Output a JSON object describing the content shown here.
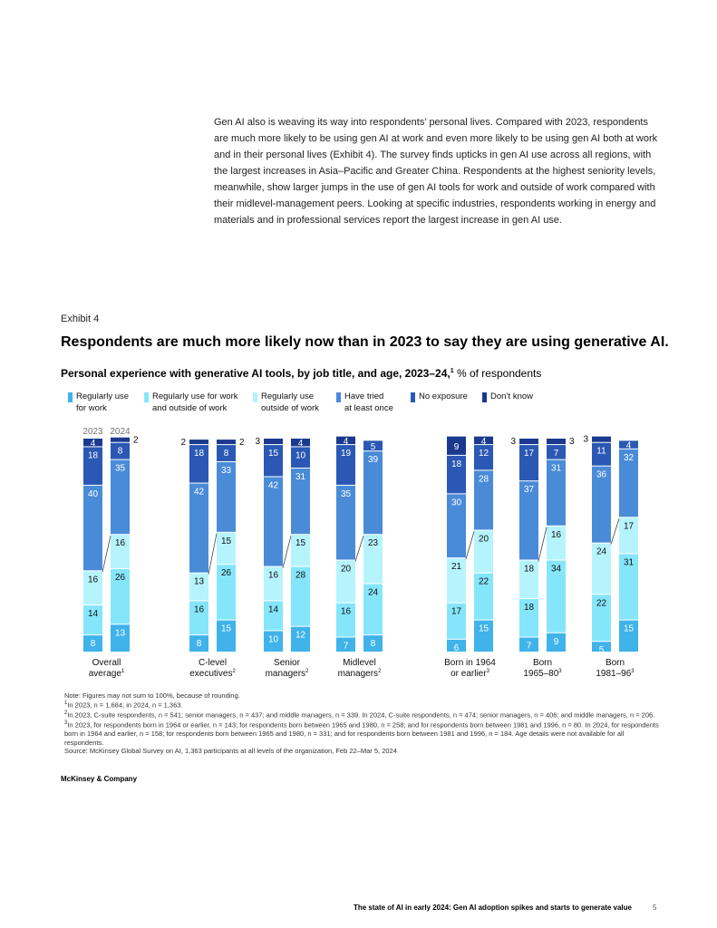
{
  "intro_text": "Gen AI also is weaving its way into respondents’ personal lives. Compared with 2023, respondents are much more likely to be using gen AI at work and even more likely to be using gen AI both at work and in their personal lives (Exhibit 4). The survey finds upticks in gen AI use across all regions, with the largest increases in Asia–Pacific and Greater China. Respondents at the highest seniority levels, meanwhile, show larger jumps in the use of gen AI tools for work and outside of work compared with their midlevel-management peers. Looking at specific industries, respondents working in energy and materials and in professional services report the largest increase in gen AI use.",
  "exhibit_label": "Exhibit 4",
  "exhibit_title": "Respondents are much more likely now than in 2023 to say they are using generative AI.",
  "subtitle_bold": "Personal experience with generative AI tools, by job title, and age, 2023–24,",
  "subtitle_sup": "1",
  "subtitle_rest": " % of respondents",
  "legend": [
    {
      "line1": "Regularly use",
      "line2": "for work",
      "color": "#3fb3ea"
    },
    {
      "line1": "Regularly use for work",
      "line2": "and outside of work",
      "color": "#85e6fb"
    },
    {
      "line1": "Regularly use",
      "line2": "outside of work",
      "color": "#b6f4fd"
    },
    {
      "line1": "Have tried",
      "line2": "at least once",
      "color": "#4a8bd8"
    },
    {
      "line1": "No exposure",
      "line2": "",
      "color": "#2a58b4"
    },
    {
      "line1": "Don’t know",
      "line2": "",
      "color": "#1b3a8f"
    }
  ],
  "chart_data": {
    "type": "bar",
    "stacked": true,
    "unit": "% of respondents",
    "year_labels": [
      "2023",
      "2024"
    ],
    "series_names": [
      "Regularly use for work",
      "Regularly use for work and outside of work",
      "Regularly use outside of work",
      "Have tried at least once",
      "No exposure",
      "Don’t know"
    ],
    "groups": [
      {
        "line1": "Overall",
        "line2": "average",
        "sup": "1",
        "y2023": [
          8,
          14,
          16,
          40,
          18,
          4
        ],
        "y2024": [
          13,
          26,
          16,
          35,
          8,
          2
        ]
      },
      {
        "line1": "C-level",
        "line2": "executives",
        "sup": "2",
        "y2023": [
          8,
          16,
          13,
          42,
          18,
          2
        ],
        "y2024": [
          15,
          26,
          15,
          33,
          8,
          2
        ]
      },
      {
        "line1": "Senior",
        "line2": "managers",
        "sup": "2",
        "y2023": [
          10,
          14,
          16,
          42,
          15,
          3
        ],
        "y2024": [
          12,
          28,
          15,
          31,
          10,
          4
        ]
      },
      {
        "line1": "Midlevel",
        "line2": "managers",
        "sup": "2",
        "y2023": [
          7,
          16,
          20,
          35,
          19,
          4
        ],
        "y2024": [
          8,
          24,
          23,
          39,
          5,
          0
        ]
      },
      {
        "line1": "Born in 1964",
        "line2": "or earlier",
        "sup": "3",
        "y2023": [
          6,
          17,
          21,
          30,
          18,
          9
        ],
        "y2024": [
          15,
          22,
          20,
          28,
          12,
          4
        ]
      },
      {
        "line1": "Born",
        "line2": "1965–80",
        "sup": "3",
        "y2023": [
          7,
          18,
          18,
          37,
          17,
          3
        ],
        "y2024": [
          9,
          34,
          16,
          31,
          7,
          3
        ]
      },
      {
        "line1": "Born",
        "line2": "1981–96",
        "sup": "3",
        "y2023": [
          5,
          22,
          24,
          36,
          11,
          3
        ],
        "y2024": [
          15,
          31,
          17,
          32,
          4,
          0
        ]
      }
    ]
  },
  "notes": [
    {
      "sup": "",
      "text": "Note: Figures may not sum to 100%, because of rounding."
    },
    {
      "sup": "1",
      "text": "In 2023, n = 1,684; in 2024, n = 1,363."
    },
    {
      "sup": "2",
      "text": "In 2023, C-suite respondents, n = 541; senior managers, n = 437; and middle managers, n = 339. In 2024, C-suite respondents, n = 474; senior managers, n = 406; and middle managers, n = 206."
    },
    {
      "sup": "3",
      "text": "In 2023, for respondents born in 1964 or earlier, n = 143; for respondents born between 1965 and 1980, n = 258; and for respondents born between 1981 and 1996, n = 80. In 2024, for respondents born in 1964 and earlier, n = 158; for respondents born between 1965 and 1980, n = 331; and for respondents born between 1981 and 1996, n = 184. Age details were not available for all respondents."
    },
    {
      "sup": "",
      "text": "Source: McKinsey Global Survey on AI, 1,363 participants at all levels of the organization, Feb 22–Mar 5, 2024"
    }
  ],
  "brand": "McKinsey & Company",
  "footer_text": "The state of AI in early 2024: Gen AI adoption spikes and starts to generate value",
  "page_number": "5"
}
